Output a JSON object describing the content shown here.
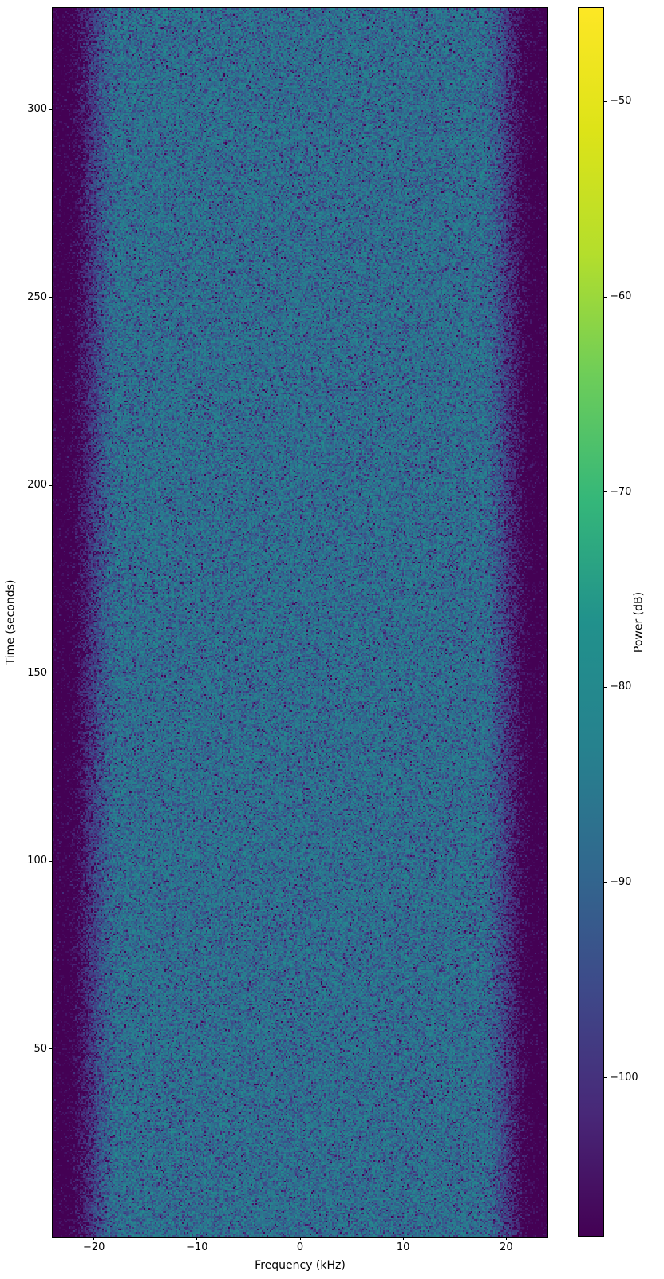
{
  "figure": {
    "background": "#ffffff",
    "spine_color": "#000000",
    "text_color": "#000000"
  },
  "chart_data": {
    "type": "heatmap",
    "subtype": "spectrogram",
    "title": "",
    "xlabel": "Frequency (kHz)",
    "ylabel": "Time (seconds)",
    "colorbar_label": "Power (dB)",
    "xlim": [
      -24,
      24
    ],
    "ylim": [
      0,
      327
    ],
    "clim": [
      -108.1,
      -45.2
    ],
    "xticks": [
      -20,
      -10,
      0,
      10,
      20
    ],
    "yticks": [
      50,
      100,
      150,
      200,
      250,
      300
    ],
    "colorbar_ticks": [
      -50,
      -60,
      -70,
      -80,
      -90,
      -100
    ],
    "grid": false,
    "legend": null,
    "colormap": {
      "name": "viridis",
      "stops": [
        "#440154",
        "#482878",
        "#3e4989",
        "#31688e",
        "#26828e",
        "#21918c",
        "#35b779",
        "#6dcd59",
        "#b4de2c",
        "#dde318",
        "#fde725"
      ]
    },
    "content": {
      "description": "Two-sided spectrogram of broadband noise: flat passband across mid frequencies, symmetric roll-off toward the band edges, statistically uniform over time with exponential speckle",
      "passband_level_db": -86,
      "passband_edge_khz": 17.5,
      "stopband_level_db": -110,
      "stopband_edge_khz": 23,
      "noise_model": "exponential-speckle"
    }
  }
}
